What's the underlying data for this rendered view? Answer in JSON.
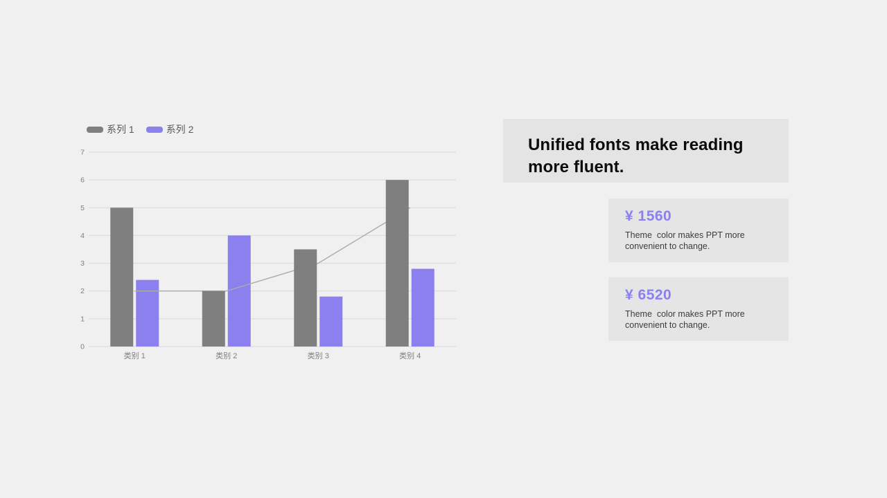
{
  "slide": {
    "colors": {
      "background": "#f0f0f0",
      "panel_background": "#e4e4e4",
      "card_background": "#e5e5e5",
      "accent_purple": "#8c7ff0",
      "bar_gray": "#7f7f7f",
      "line_gray": "#ababab",
      "gridline": "#d9d9d9",
      "tick_text": "#7e7e7e",
      "legend_text": "#595959"
    },
    "header": {
      "text": "Unified fonts make reading\nmore fluent."
    },
    "cards": [
      {
        "amount": "¥ 1560",
        "description": "Theme  color makes PPT more\nconvenient to change."
      },
      {
        "amount": "¥ 6520",
        "description": "Theme  color makes PPT more\nconvenient to change."
      }
    ]
  },
  "chart_data": {
    "type": "bar",
    "title": "",
    "xlabel": "",
    "ylabel": "",
    "categories": [
      "类别 1",
      "类别 2",
      "类别 3",
      "类别 4"
    ],
    "series": [
      {
        "name": "系列 1",
        "type": "bar",
        "color": "#7f7f7f",
        "values": [
          5,
          2,
          3.5,
          6
        ],
        "in_legend": true
      },
      {
        "name": "系列 2",
        "type": "bar",
        "color": "#8c80ee",
        "values": [
          2.4,
          4,
          1.8,
          2.8
        ],
        "in_legend": true
      },
      {
        "name": "line-overlay",
        "type": "line",
        "color": "#ababab",
        "values": [
          2,
          2,
          3,
          5
        ],
        "in_legend": false
      }
    ],
    "ylim": [
      0,
      7
    ],
    "yticks": [
      0,
      1,
      2,
      3,
      4,
      5,
      6,
      7
    ],
    "grid": true,
    "legend_position": "top-left"
  }
}
